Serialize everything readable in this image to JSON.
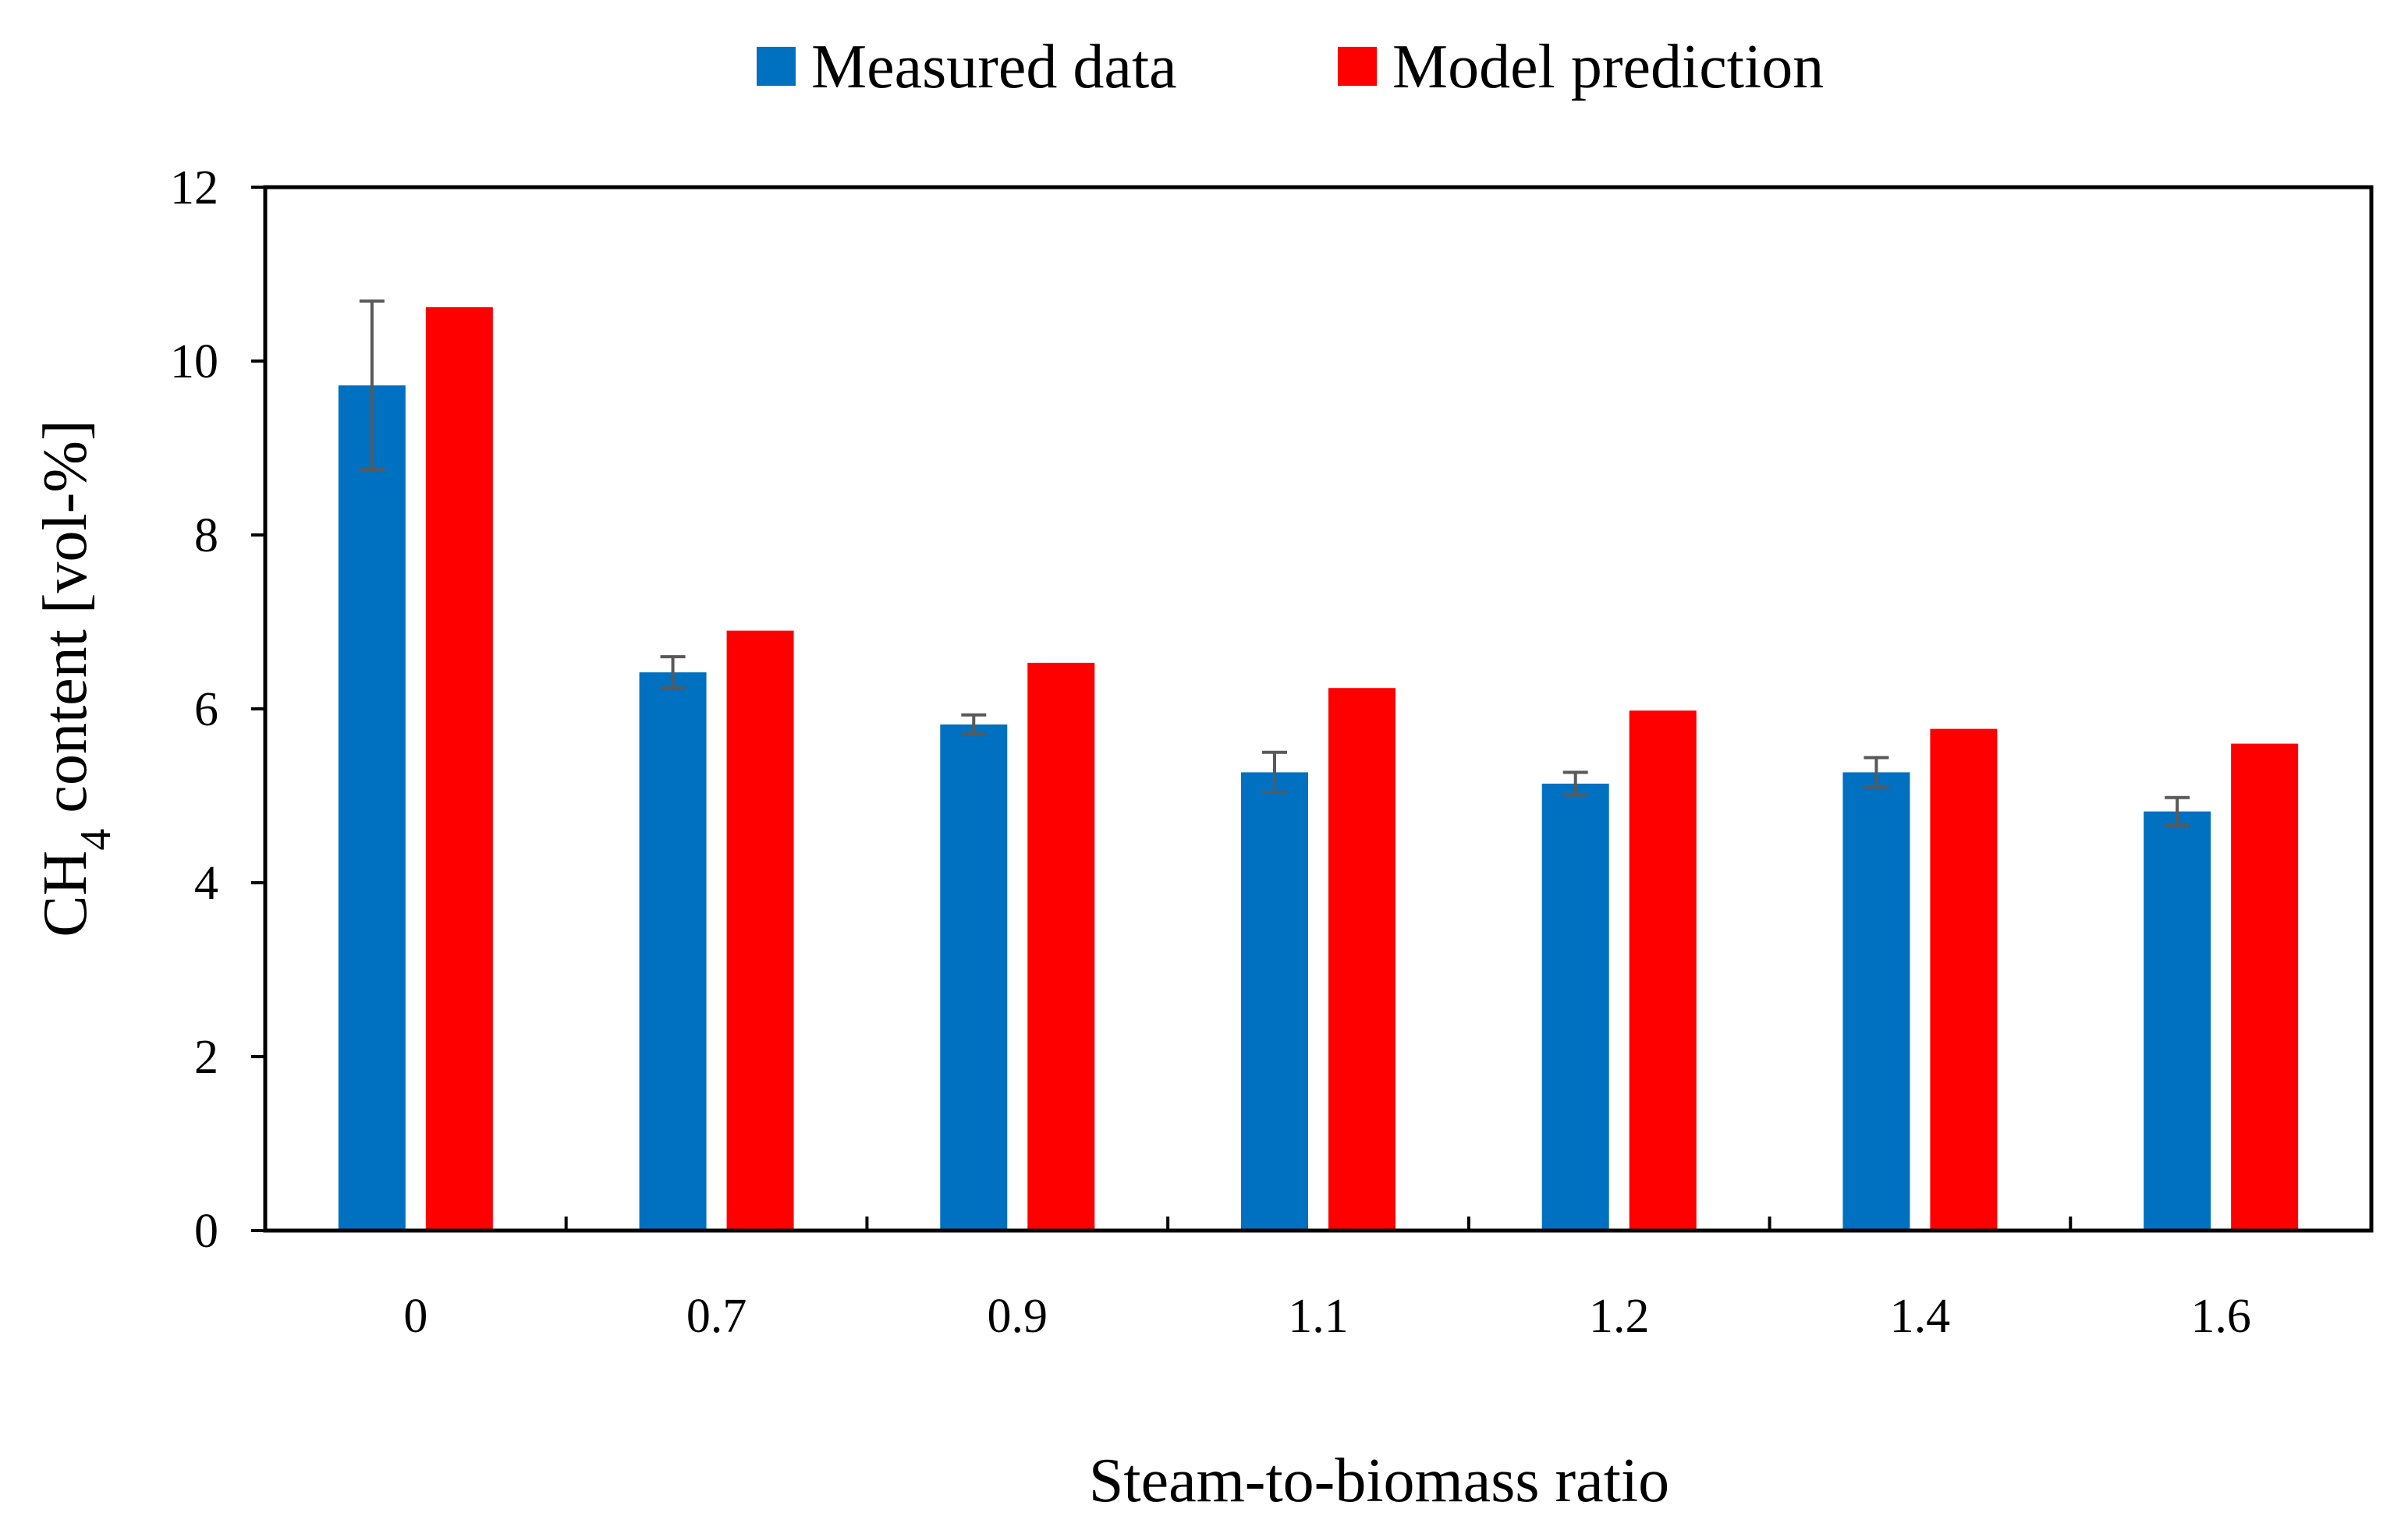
{
  "chart_data": {
    "type": "bar",
    "title": "",
    "xlabel": "Steam-to-biomass ratio",
    "ylabel": {
      "main": "CH",
      "subscript": "4",
      "rest": " content [vol-%]"
    },
    "categories": [
      "0",
      "0.7",
      "0.9",
      "1.1",
      "1.2",
      "1.4",
      "1.6"
    ],
    "ylim": [
      0,
      12
    ],
    "yticks": [
      0,
      2,
      4,
      6,
      8,
      10,
      12
    ],
    "ytick_labels": [
      "0",
      "2",
      "4",
      "6",
      "8",
      "10",
      "12"
    ],
    "grid": false,
    "legend_position": "top-center",
    "series": [
      {
        "name": "Measured data",
        "color": "#0070C0",
        "values": [
          9.72,
          6.42,
          5.82,
          5.27,
          5.14,
          5.27,
          4.82
        ],
        "error": [
          0.97,
          0.18,
          0.11,
          0.23,
          0.13,
          0.17,
          0.16
        ]
      },
      {
        "name": "Model prediction",
        "color": "#FF0000",
        "values": [
          10.62,
          6.9,
          6.53,
          6.24,
          5.98,
          5.77,
          5.6
        ]
      }
    ],
    "error_bar_color": "#595959"
  }
}
